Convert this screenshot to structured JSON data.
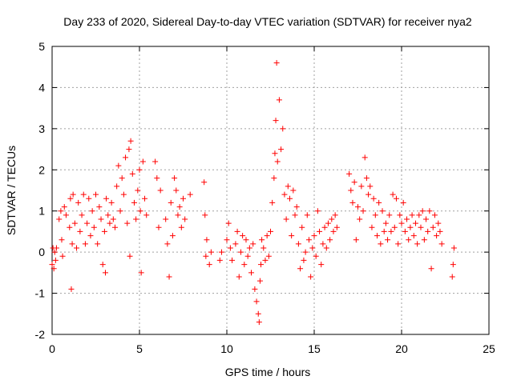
{
  "chart_data": {
    "type": "scatter",
    "title": "Day 233 of 2020, Sidereal Day-to-day VTEC variation (SDTVAR) for receiver nya2",
    "xlabel": "GPS time / hours",
    "ylabel": "SDTVAR / TECUs",
    "xlim": [
      0,
      25
    ],
    "ylim": [
      -2,
      5
    ],
    "xticks": [
      0,
      5,
      10,
      15,
      20,
      25
    ],
    "xtick_labels": [
      "0",
      "5",
      "10",
      "15",
      "20",
      "25"
    ],
    "yticks": [
      -2,
      -1,
      0,
      1,
      2,
      3,
      4,
      5
    ],
    "ytick_labels": [
      "-2",
      "-1",
      "0",
      "1",
      "2",
      "3",
      "4",
      "5"
    ],
    "grid": true,
    "marker": "+",
    "series": [
      {
        "name": "SDTVAR",
        "color": "#ff0000",
        "x": [
          0.0,
          0.05,
          0.1,
          0.15,
          0.2,
          0.25,
          0.4,
          0.5,
          0.55,
          0.6,
          0.7,
          0.8,
          1.0,
          1.05,
          1.1,
          1.15,
          1.2,
          1.3,
          1.4,
          1.5,
          1.6,
          1.7,
          1.8,
          1.9,
          2.0,
          2.1,
          2.2,
          2.3,
          2.4,
          2.5,
          2.6,
          2.7,
          2.8,
          2.9,
          3.0,
          3.05,
          3.1,
          3.2,
          3.3,
          3.4,
          3.5,
          3.6,
          3.7,
          3.8,
          3.9,
          4.0,
          4.1,
          4.2,
          4.3,
          4.4,
          4.45,
          4.5,
          4.6,
          4.7,
          4.8,
          4.9,
          5.0,
          5.05,
          5.1,
          5.2,
          5.3,
          5.4,
          5.9,
          6.0,
          6.1,
          6.2,
          6.5,
          6.6,
          6.7,
          6.8,
          6.9,
          7.0,
          7.1,
          7.2,
          7.3,
          7.4,
          7.5,
          7.6,
          7.9,
          8.7,
          8.75,
          8.8,
          8.85,
          9.0,
          9.1,
          9.6,
          9.7,
          10.0,
          10.1,
          10.2,
          10.3,
          10.5,
          10.6,
          10.7,
          10.8,
          10.9,
          11.0,
          11.1,
          11.2,
          11.3,
          11.4,
          11.5,
          11.6,
          11.7,
          11.8,
          11.85,
          11.9,
          11.95,
          12.0,
          12.1,
          12.2,
          12.3,
          12.4,
          12.5,
          12.6,
          12.7,
          12.75,
          12.8,
          12.85,
          12.9,
          13.0,
          13.1,
          13.2,
          13.3,
          13.4,
          13.5,
          13.6,
          13.7,
          13.8,
          13.9,
          14.0,
          14.1,
          14.2,
          14.3,
          14.4,
          14.5,
          14.6,
          14.7,
          14.8,
          14.9,
          15.0,
          15.1,
          15.2,
          15.3,
          15.4,
          15.5,
          15.6,
          15.7,
          15.8,
          15.9,
          16.0,
          16.1,
          16.2,
          16.3,
          17.0,
          17.1,
          17.2,
          17.3,
          17.4,
          17.5,
          17.6,
          17.7,
          17.8,
          17.9,
          18.0,
          18.1,
          18.2,
          18.3,
          18.4,
          18.5,
          18.6,
          18.7,
          18.8,
          18.9,
          19.0,
          19.1,
          19.2,
          19.3,
          19.4,
          19.5,
          19.6,
          19.7,
          19.8,
          19.9,
          20.0,
          20.1,
          20.2,
          20.3,
          20.4,
          20.5,
          20.6,
          20.7,
          20.8,
          20.9,
          21.0,
          21.1,
          21.2,
          21.3,
          21.4,
          21.5,
          21.6,
          21.7,
          21.8,
          21.9,
          22.0,
          22.1,
          22.2,
          22.3,
          22.9,
          22.95,
          23.0
        ],
        "y": [
          -0.3,
          0.1,
          -0.4,
          0.0,
          -0.2,
          0.1,
          0.8,
          1.0,
          0.3,
          -0.1,
          1.1,
          0.9,
          0.6,
          1.3,
          -0.9,
          0.2,
          1.4,
          0.7,
          0.1,
          1.2,
          0.5,
          0.9,
          1.4,
          0.2,
          0.7,
          1.3,
          0.4,
          1.0,
          0.6,
          1.4,
          0.2,
          1.1,
          0.8,
          -0.3,
          0.5,
          -0.5,
          1.3,
          0.9,
          0.7,
          1.2,
          0.8,
          0.6,
          1.6,
          2.1,
          1.0,
          1.8,
          1.4,
          2.3,
          0.7,
          2.5,
          -0.1,
          2.7,
          1.9,
          1.2,
          0.8,
          1.5,
          2.0,
          1.0,
          -0.5,
          2.2,
          1.3,
          0.9,
          2.2,
          1.8,
          0.6,
          1.5,
          0.8,
          0.2,
          -0.6,
          1.2,
          0.4,
          1.8,
          1.5,
          0.9,
          1.1,
          0.6,
          1.3,
          0.8,
          1.4,
          1.7,
          0.9,
          -0.1,
          0.3,
          -0.3,
          0.0,
          -0.2,
          0.0,
          0.3,
          0.7,
          0.1,
          -0.2,
          0.2,
          0.5,
          -0.6,
          0.0,
          0.4,
          -0.3,
          0.3,
          -0.1,
          0.1,
          -0.5,
          0.2,
          -0.9,
          -1.2,
          -1.5,
          -1.7,
          -0.7,
          -0.3,
          0.3,
          0.1,
          -0.2,
          0.4,
          -0.1,
          0.5,
          1.2,
          1.8,
          2.4,
          3.2,
          4.6,
          2.2,
          3.7,
          2.5,
          3.0,
          1.4,
          0.8,
          1.6,
          1.3,
          0.4,
          1.5,
          0.9,
          1.1,
          0.2,
          -0.4,
          0.6,
          -0.2,
          0.0,
          0.9,
          0.3,
          -0.6,
          0.1,
          0.4,
          -0.1,
          1.0,
          0.5,
          -0.3,
          0.2,
          0.6,
          0.1,
          0.7,
          0.3,
          0.8,
          0.5,
          0.9,
          0.6,
          1.9,
          1.5,
          1.2,
          1.7,
          0.3,
          1.1,
          0.8,
          1.6,
          1.0,
          2.3,
          1.8,
          1.4,
          1.6,
          0.6,
          1.3,
          0.9,
          0.4,
          1.2,
          0.2,
          1.0,
          0.5,
          0.7,
          0.3,
          0.9,
          0.5,
          1.4,
          0.6,
          1.3,
          0.2,
          0.9,
          0.7,
          1.2,
          0.5,
          0.8,
          0.3,
          0.6,
          0.9,
          0.4,
          0.7,
          0.2,
          0.9,
          0.6,
          1.0,
          0.3,
          0.8,
          0.5,
          1.0,
          -0.4,
          0.6,
          0.9,
          0.4,
          0.7,
          0.5,
          0.2,
          -0.6,
          -0.3,
          0.1
        ]
      }
    ]
  }
}
